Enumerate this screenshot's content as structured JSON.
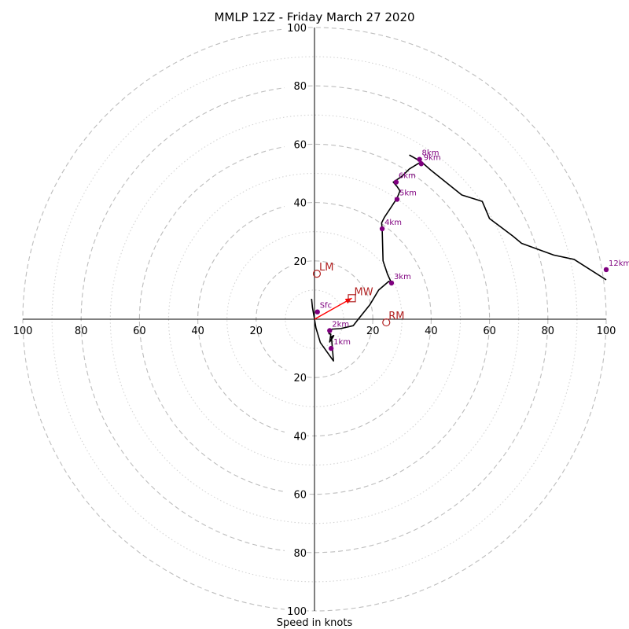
{
  "chart_data": {
    "type": "hodograph",
    "title": "MMLP 12Z - Friday March 27 2020",
    "xlabel": "Speed in knots",
    "units": "knots",
    "ring_max": 100,
    "ring_step": 10,
    "labeled_rings": [
      20,
      40,
      60,
      80,
      100
    ],
    "axis_tick_labels": [
      "100",
      "80",
      "60",
      "40",
      "20",
      "20",
      "40",
      "60",
      "80",
      "100"
    ],
    "grid": true,
    "hodograph_trace": {
      "color": "#000000",
      "points": [
        [
          -1,
          7
        ],
        [
          -0.7,
          4
        ],
        [
          0,
          0
        ],
        [
          0.5,
          -3
        ],
        [
          2,
          -8
        ],
        [
          4.5,
          -11.5
        ],
        [
          6.5,
          -14.3
        ],
        [
          5.8,
          -6
        ],
        [
          6.6,
          -5.6
        ],
        [
          6.3,
          -6.2
        ],
        [
          5.2,
          -7.8
        ],
        [
          5.6,
          -5.1
        ],
        [
          5,
          -5
        ],
        [
          4.8,
          -4.2
        ],
        [
          6,
          -3.4
        ],
        [
          9,
          -3.2
        ],
        [
          13.3,
          -2.2
        ],
        [
          15,
          0
        ],
        [
          19,
          5
        ],
        [
          22,
          10
        ],
        [
          25.5,
          13
        ],
        [
          26.4,
          12.4
        ],
        [
          25,
          15.5
        ],
        [
          23.5,
          20
        ],
        [
          23.2,
          31
        ],
        [
          23,
          33
        ],
        [
          24,
          35
        ],
        [
          26,
          38
        ],
        [
          28.3,
          41.5
        ],
        [
          29.3,
          44
        ],
        [
          28.3,
          45.5
        ],
        [
          27,
          47
        ],
        [
          30,
          49
        ],
        [
          32.5,
          51.5
        ],
        [
          36.6,
          54
        ],
        [
          40,
          51
        ],
        [
          50.5,
          42.6
        ],
        [
          57.5,
          40.4
        ],
        [
          60,
          34.5
        ],
        [
          68,
          28.5
        ],
        [
          71,
          26
        ],
        [
          82,
          22
        ],
        [
          89,
          20.5
        ],
        [
          100,
          13.5
        ]
      ],
      "upper_segment": [
        [
          32.5,
          56.3
        ],
        [
          36.6,
          54
        ]
      ]
    },
    "height_markers": {
      "color": "#7f007f",
      "points": [
        {
          "label": "Sfc",
          "u": 1,
          "v": 2.5
        },
        {
          "label": "1km",
          "u": 5.7,
          "v": -10
        },
        {
          "label": "2km",
          "u": 5.2,
          "v": -3.9
        },
        {
          "label": "3km",
          "u": 26.4,
          "v": 12.4
        },
        {
          "label": "4km",
          "u": 23.2,
          "v": 31
        },
        {
          "label": "5km",
          "u": 28.3,
          "v": 41.1
        },
        {
          "label": "6km",
          "u": 28,
          "v": 47
        },
        {
          "label": "8km",
          "u": 36,
          "v": 54.8
        },
        {
          "label": "9km",
          "u": 36.6,
          "v": 53.3
        },
        {
          "label": "12km",
          "u": 100,
          "v": 17
        }
      ]
    },
    "storm_motion": {
      "color": "#b22222",
      "arrow_color": "#ff0000",
      "points": [
        {
          "label": "LM",
          "u": 0.8,
          "v": 15.6,
          "marker": "circle"
        },
        {
          "label": "MW",
          "u": 12.8,
          "v": 7.2,
          "marker": "square"
        },
        {
          "label": "RM",
          "u": 24.6,
          "v": -1.1,
          "marker": "circle"
        }
      ],
      "arrow": {
        "from": [
          0,
          0
        ],
        "to": [
          12.8,
          7.2
        ]
      }
    }
  }
}
